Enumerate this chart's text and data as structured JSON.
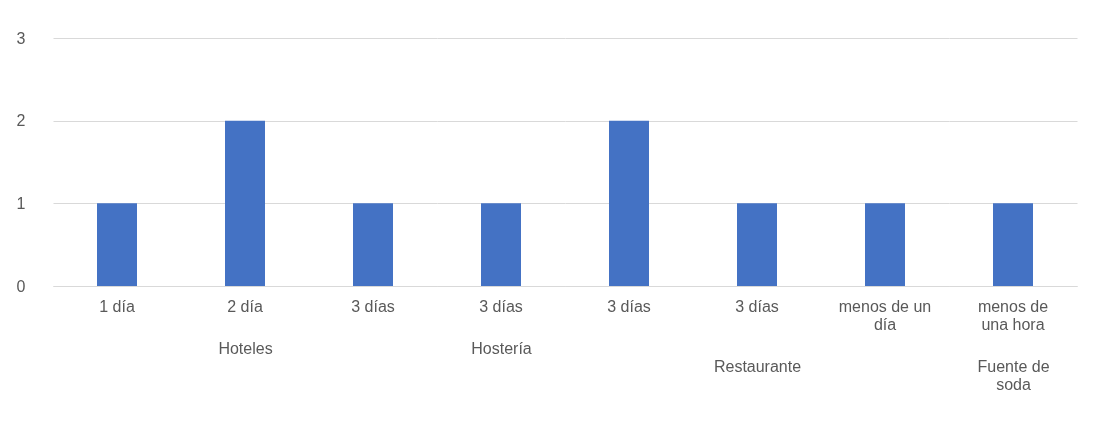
{
  "chart_data": [
    {
      "type": "bar",
      "categories": [
        "1 día",
        "2 día",
        "3 días"
      ],
      "values": [
        1,
        2,
        1
      ],
      "color": "#4472c4",
      "xlabel": "Hoteles",
      "ylim": [
        0,
        3
      ],
      "yticks": [
        0,
        1,
        2,
        3
      ],
      "grid": "y"
    },
    {
      "type": "bar",
      "categories": [
        "3 días"
      ],
      "values": [
        1
      ],
      "color": "#4472c4",
      "xlabel": "Hostería",
      "ylim": [
        0,
        3
      ],
      "yticks": [
        0,
        1,
        2,
        3
      ],
      "grid": "y",
      "tick_labels": "x"
    },
    {
      "type": "bar",
      "categories": [
        "3 días",
        "3 días",
        "menos de un día"
      ],
      "values": [
        2,
        1,
        1
      ],
      "color": "#4472c4",
      "xlabel": "Restaurante",
      "ylim": [
        0,
        3
      ],
      "yticks": [
        0,
        1,
        2,
        3
      ],
      "grid": "y",
      "tick_labels": "x"
    },
    {
      "type": "bar",
      "categories": [
        "menos de una hora"
      ],
      "values": [
        1
      ],
      "color": "#4472c4",
      "xlabel": "Fuente de soda",
      "ylim": [
        0,
        3
      ],
      "yticks": [
        0,
        1,
        2,
        3
      ],
      "grid": "y",
      "tick_labels": "x"
    }
  ]
}
